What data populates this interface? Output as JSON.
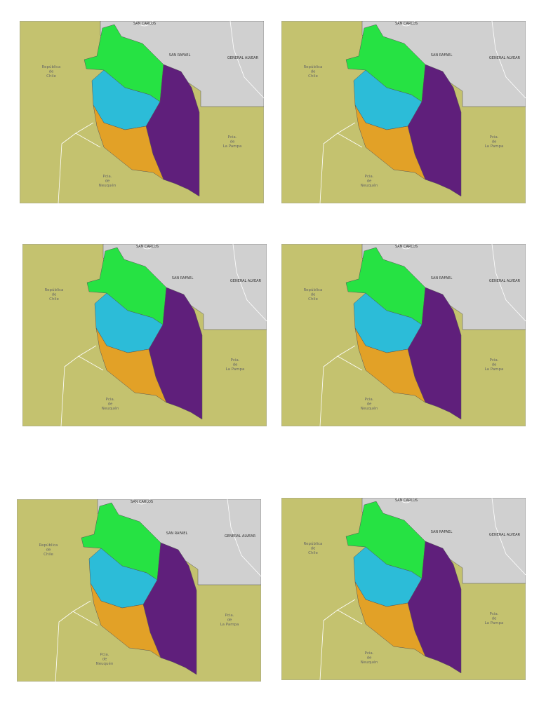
{
  "maps": [
    {
      "san_carlos": "SAN CARLOS",
      "san_rafael": "SAN RAFAEL",
      "general_alvear": "GENERAL ALVEAR",
      "chile": [
        "República",
        "de",
        "Chile"
      ],
      "la_pampa": [
        "Pcia.",
        "de",
        "La Pampa"
      ],
      "neuquen": [
        "Pcia.",
        "de",
        "Neuquén"
      ]
    },
    {
      "san_carlos": "SAN CARLOS",
      "san_rafael": "SAN RAFAEL",
      "general_alvear": "GENERAL ALVEAR",
      "chile": [
        "República",
        "de",
        "Chile"
      ],
      "la_pampa": [
        "Pcia.",
        "de",
        "La Pampa"
      ],
      "neuquen": [
        "Pcia.",
        "de",
        "Neuquén"
      ]
    },
    {
      "san_carlos": "SAN CARLOS",
      "san_rafael": "SAN RAFAEL",
      "general_alvear": "GENERAL ALVEAR",
      "chile": [
        "República",
        "de",
        "Chile"
      ],
      "la_pampa": [
        "Pcia.",
        "de",
        "La Pampa"
      ],
      "neuquen": [
        "Pcia.",
        "de",
        "Neuquén"
      ]
    },
    {
      "san_carlos": "SAN CARLOS",
      "san_rafael": "SAN RAFAEL",
      "general_alvear": "GENERAL ALVEAR",
      "chile": [
        "República",
        "de",
        "Chile"
      ],
      "la_pampa": [
        "Pcia.",
        "de",
        "La Pampa"
      ],
      "neuquen": [
        "Pcia.",
        "de",
        "Neuquén"
      ]
    },
    {
      "san_carlos": "SAN CARLOS",
      "san_rafael": "SAN RAFAEL",
      "general_alvear": "GENERAL ALVEAR",
      "chile": [
        "República",
        "de",
        "Chile"
      ],
      "la_pampa": [
        "Pcia.",
        "de",
        "La Pampa"
      ],
      "neuquen": [
        "Pcia.",
        "de",
        "Neuquén"
      ]
    },
    {
      "san_carlos": "SAN CARLOS",
      "san_rafael": "SAN RAFAEL",
      "general_alvear": "GENERAL ALVEAR",
      "chile": [
        "República",
        "de",
        "Chile"
      ],
      "la_pampa": [
        "Pcia.",
        "de",
        "La Pampa"
      ],
      "neuquen": [
        "Pcia.",
        "de",
        "Neuquén"
      ]
    }
  ]
}
